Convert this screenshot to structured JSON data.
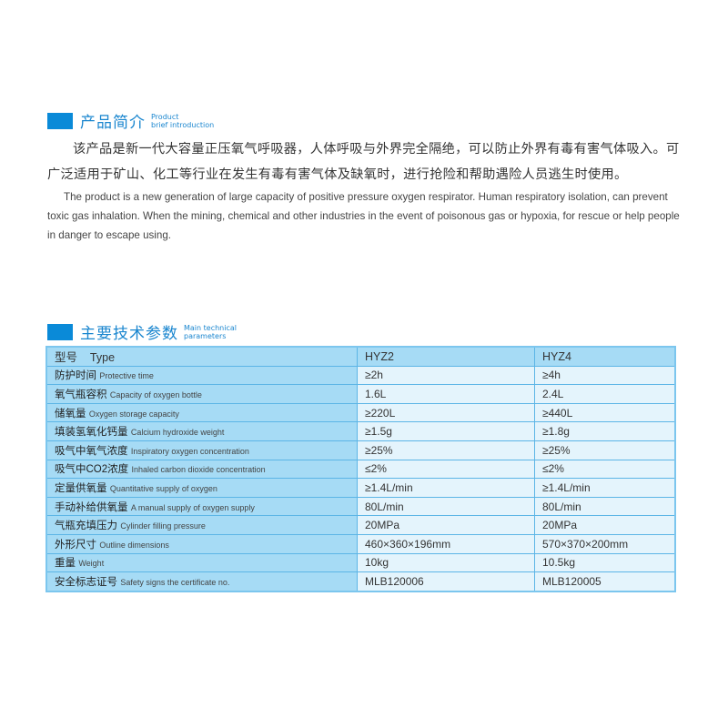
{
  "intro_section": {
    "title_zh": "产品简介",
    "title_en_line1": "Product",
    "title_en_line2": "brief introduction",
    "text_zh": "该产品是新一代大容量正压氧气呼吸器，人体呼吸与外界完全隔绝，可以防止外界有毒有害气体吸入。可广泛适用于矿山、化工等行业在发生有毒有害气体及缺氧时，进行抢险和帮助遇险人员逃生时使用。",
    "text_en": "The product is a new generation of large capacity of positive pressure oxygen respirator. Human respiratory isolation, can prevent toxic gas inhalation. When the mining, chemical and other industries in the event of poisonous gas or hypoxia, for rescue or help people in danger to escape using."
  },
  "params_section": {
    "title_zh": "主要技术参数",
    "title_en_line1": "Main technical",
    "title_en_line2": "parameters",
    "header": {
      "zh": "型号",
      "en": "Type",
      "col1": "HYZ2",
      "col2": "HYZ4"
    },
    "rows": [
      {
        "zh": "防护时间",
        "en": "Protective time",
        "col1": "≥2h",
        "col2": "≥4h"
      },
      {
        "zh": "氧气瓶容积",
        "en": "Capacity of oxygen bottle",
        "col1": "1.6L",
        "col2": "2.4L"
      },
      {
        "zh": "储氧量",
        "en": "Oxygen storage capacity",
        "col1": "≥220L",
        "col2": "≥440L"
      },
      {
        "zh": "填装氢氧化钙量",
        "en": "Calcium hydroxide weight",
        "col1": "≥1.5g",
        "col2": "≥1.8g"
      },
      {
        "zh": "吸气中氧气浓度",
        "en": "Inspiratory oxygen concentration",
        "col1": "≥25%",
        "col2": "≥25%"
      },
      {
        "zh": "吸气中CO2浓度",
        "en": "Inhaled carbon dioxide concentration",
        "col1": "≤2%",
        "col2": "≤2%"
      },
      {
        "zh": "定量供氧量",
        "en": "Quantitative supply of oxygen",
        "col1": "≥1.4L/min",
        "col2": "≥1.4L/min"
      },
      {
        "zh": "手动补给供氧量",
        "en": "A manual supply of oxygen supply",
        "col1": "80L/min",
        "col2": "80L/min"
      },
      {
        "zh": "气瓶充填压力",
        "en": "Cylinder filling pressure",
        "col1": "20MPa",
        "col2": "20MPa"
      },
      {
        "zh": "外形尺寸",
        "en": "Outline dimensions",
        "col1": "460×360×196mm",
        "col2": "570×370×200mm"
      },
      {
        "zh": "重量",
        "en": "Weight",
        "col1": "10kg",
        "col2": "10.5kg"
      },
      {
        "zh": "安全标志证号",
        "en": "Safety signs the certificate no.",
        "col1": "MLB120006",
        "col2": "MLB120005"
      }
    ]
  },
  "colors": {
    "accent": "#0a8ad8",
    "table_label_bg": "#a6dbf5",
    "table_cell_bg": "#e4f4fc"
  }
}
